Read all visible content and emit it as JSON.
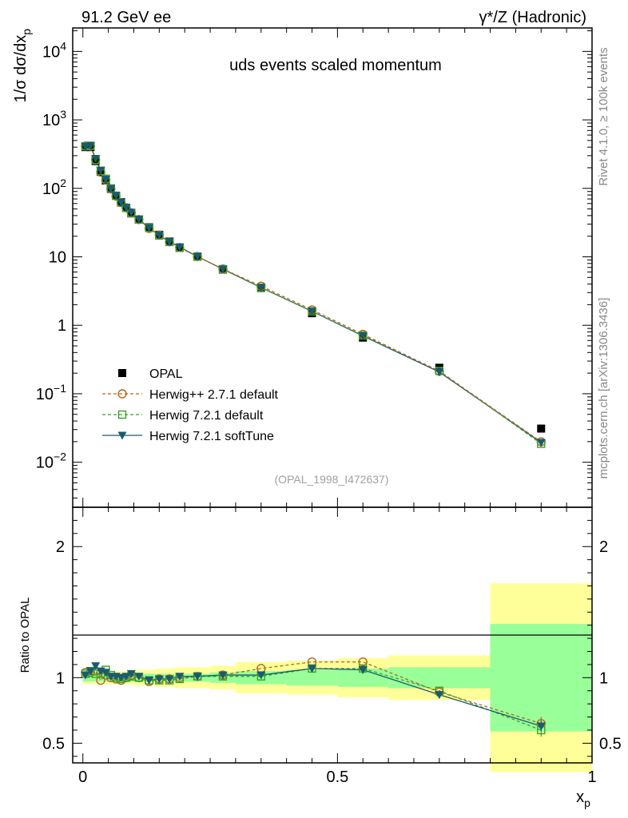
{
  "header": {
    "left": "91.2 GeV ee",
    "right": "γ*/Z (Hadronic)"
  },
  "title": "uds events scaled momentum",
  "ref_label": "(OPAL_1998_I472637)",
  "side_labels": {
    "rivet": "Rivet 4.1.0, ≥ 100k events",
    "mcplots": "mcplots.cern.ch [arXiv:1306.3436]"
  },
  "colors": {
    "opal": "#000000",
    "herwigpp": "#b5651d",
    "herwig_default": "#3aa02a",
    "herwig_soft": "#1c5a6e",
    "band_inner": "#99ff99",
    "band_outer": "#ffff99"
  },
  "chart_data": [
    {
      "type": "line",
      "title": "uds events scaled momentum",
      "ylabel": "1/σ  dσ/dx_p",
      "yscale": "log",
      "ylim": [
        0.0022,
        22000
      ],
      "xlim": [
        -0.02,
        1.0
      ],
      "y_ticks": [
        {
          "v": 0.01,
          "label": "10^-2"
        },
        {
          "v": 0.1,
          "label": "10^-1"
        },
        {
          "v": 1,
          "label": "1"
        },
        {
          "v": 10,
          "label": "10"
        },
        {
          "v": 100,
          "label": "10^2"
        },
        {
          "v": 1000,
          "label": "10^3"
        },
        {
          "v": 10000,
          "label": "10^4"
        }
      ],
      "x": [
        0.005,
        0.015,
        0.025,
        0.035,
        0.045,
        0.055,
        0.065,
        0.075,
        0.085,
        0.095,
        0.11,
        0.13,
        0.15,
        0.17,
        0.19,
        0.225,
        0.275,
        0.35,
        0.45,
        0.55,
        0.7,
        0.9
      ],
      "series": [
        {
          "name": "OPAL",
          "key": "opal",
          "marker": "square",
          "values": [
            400,
            400,
            250,
            175,
            130,
            98,
            78,
            63,
            52,
            43,
            35,
            27,
            21,
            16.8,
            13.7,
            10.0,
            6.5,
            3.5,
            1.5,
            0.66,
            0.24,
            0.031
          ]
        },
        {
          "name": "Herwig++ 2.7.1 default",
          "key": "herwigpp",
          "marker": "circle",
          "values": [
            415,
            415,
            262,
            172,
            132,
            98,
            77,
            62,
            52,
            44,
            35,
            26,
            20.8,
            16.6,
            13.7,
            10.1,
            6.65,
            3.73,
            1.68,
            0.74,
            0.213,
            0.0199
          ]
        },
        {
          "name": "Herwig 7.2.1 default",
          "key": "herwig_default",
          "marker": "open-square",
          "values": [
            412,
            418,
            258,
            180,
            138,
            100,
            78,
            62,
            52,
            43.5,
            35,
            26.5,
            20.5,
            16.5,
            13.5,
            10.1,
            6.6,
            3.55,
            1.6,
            0.71,
            0.216,
            0.0186
          ]
        },
        {
          "name": "Herwig 7.2.1 softTune",
          "key": "herwig_soft",
          "marker": "triangle-down",
          "values": [
            408,
            420,
            272,
            184,
            135,
            98.5,
            78.5,
            63,
            52.5,
            44.5,
            35.5,
            26.5,
            20.7,
            16.6,
            13.9,
            10.1,
            6.6,
            3.55,
            1.6,
            0.7,
            0.208,
            0.0194
          ]
        }
      ],
      "legend": [
        "OPAL",
        "Herwig++ 2.7.1 default",
        "Herwig 7.2.1 default",
        "Herwig 7.2.1 softTune"
      ]
    },
    {
      "type": "line",
      "ylabel": "Ratio to OPAL",
      "xlabel": "x_p",
      "ylim": [
        0.35,
        2.3
      ],
      "xlim": [
        -0.02,
        1.0
      ],
      "y_ticks": [
        {
          "v": 0.5,
          "label": "0.5"
        },
        {
          "v": 1,
          "label": "1"
        },
        {
          "v": 2,
          "label": "2"
        }
      ],
      "x_ticks": [
        {
          "v": 0,
          "label": "0"
        },
        {
          "v": 0.5,
          "label": "0.5"
        },
        {
          "v": 1,
          "label": "1"
        }
      ],
      "bands": [
        {
          "x0": 0.0,
          "x1": 0.01,
          "inner": 0.03,
          "outer": 0.05
        },
        {
          "x0": 0.01,
          "x1": 0.02,
          "inner": 0.03,
          "outer": 0.05
        },
        {
          "x0": 0.02,
          "x1": 0.03,
          "inner": 0.03,
          "outer": 0.05
        },
        {
          "x0": 0.03,
          "x1": 0.04,
          "inner": 0.03,
          "outer": 0.05
        },
        {
          "x0": 0.04,
          "x1": 0.05,
          "inner": 0.03,
          "outer": 0.05
        },
        {
          "x0": 0.05,
          "x1": 0.06,
          "inner": 0.03,
          "outer": 0.05
        },
        {
          "x0": 0.06,
          "x1": 0.07,
          "inner": 0.03,
          "outer": 0.05
        },
        {
          "x0": 0.07,
          "x1": 0.08,
          "inner": 0.03,
          "outer": 0.05
        },
        {
          "x0": 0.08,
          "x1": 0.09,
          "inner": 0.03,
          "outer": 0.05
        },
        {
          "x0": 0.09,
          "x1": 0.1,
          "inner": 0.03,
          "outer": 0.05
        },
        {
          "x0": 0.1,
          "x1": 0.12,
          "inner": 0.03,
          "outer": 0.06
        },
        {
          "x0": 0.12,
          "x1": 0.14,
          "inner": 0.03,
          "outer": 0.06
        },
        {
          "x0": 0.14,
          "x1": 0.16,
          "inner": 0.03,
          "outer": 0.07
        },
        {
          "x0": 0.16,
          "x1": 0.18,
          "inner": 0.03,
          "outer": 0.07
        },
        {
          "x0": 0.18,
          "x1": 0.2,
          "inner": 0.03,
          "outer": 0.08
        },
        {
          "x0": 0.2,
          "x1": 0.25,
          "inner": 0.03,
          "outer": 0.08
        },
        {
          "x0": 0.25,
          "x1": 0.3,
          "inner": 0.04,
          "outer": 0.09
        },
        {
          "x0": 0.3,
          "x1": 0.4,
          "inner": 0.05,
          "outer": 0.12
        },
        {
          "x0": 0.4,
          "x1": 0.5,
          "inner": 0.06,
          "outer": 0.13
        },
        {
          "x0": 0.5,
          "x1": 0.6,
          "inner": 0.07,
          "outer": 0.15
        },
        {
          "x0": 0.6,
          "x1": 0.8,
          "inner": 0.08,
          "outer": 0.17
        },
        {
          "x0": 0.8,
          "x1": 1.0,
          "inner": 0.41,
          "outer": 0.72
        }
      ],
      "series": [
        {
          "name": "Herwig++ 2.7.1 default",
          "key": "herwigpp",
          "marker": "circle",
          "values": [
            1.04,
            1.04,
            1.05,
            0.98,
            1.02,
            1.0,
            0.99,
            0.98,
            1.0,
            1.02,
            1.0,
            0.97,
            0.99,
            0.99,
            1.0,
            1.01,
            1.02,
            1.07,
            1.12,
            1.12,
            0.89,
            0.65
          ],
          "errors": [
            0,
            0,
            0,
            0,
            0,
            0,
            0,
            0,
            0,
            0,
            0,
            0,
            0,
            0,
            0,
            0,
            0,
            0,
            0,
            0,
            0,
            0.05
          ]
        },
        {
          "name": "Herwig 7.2.1 default",
          "key": "herwig_default",
          "marker": "open-square",
          "values": [
            1.03,
            1.05,
            1.03,
            1.03,
            1.06,
            1.02,
            1.0,
            0.99,
            1.0,
            1.01,
            1.0,
            0.98,
            0.98,
            0.98,
            0.99,
            1.01,
            1.01,
            1.01,
            1.07,
            1.07,
            0.9,
            0.6
          ],
          "errors": [
            0,
            0,
            0,
            0,
            0,
            0,
            0,
            0,
            0,
            0,
            0,
            0,
            0,
            0,
            0,
            0,
            0,
            0,
            0,
            0,
            0,
            0.05
          ]
        },
        {
          "name": "Herwig 7.2.1 softTune",
          "key": "herwig_soft",
          "marker": "triangle-down",
          "values": [
            1.02,
            1.05,
            1.09,
            1.05,
            1.04,
            1.01,
            1.01,
            1.0,
            1.01,
            1.03,
            1.01,
            0.98,
            0.99,
            0.99,
            1.01,
            1.01,
            1.02,
            1.02,
            1.07,
            1.06,
            0.87,
            0.63
          ],
          "errors": [
            0,
            0,
            0,
            0,
            0,
            0,
            0,
            0,
            0,
            0,
            0,
            0,
            0,
            0,
            0,
            0,
            0,
            0,
            0,
            0,
            0,
            0.04
          ]
        }
      ]
    }
  ]
}
